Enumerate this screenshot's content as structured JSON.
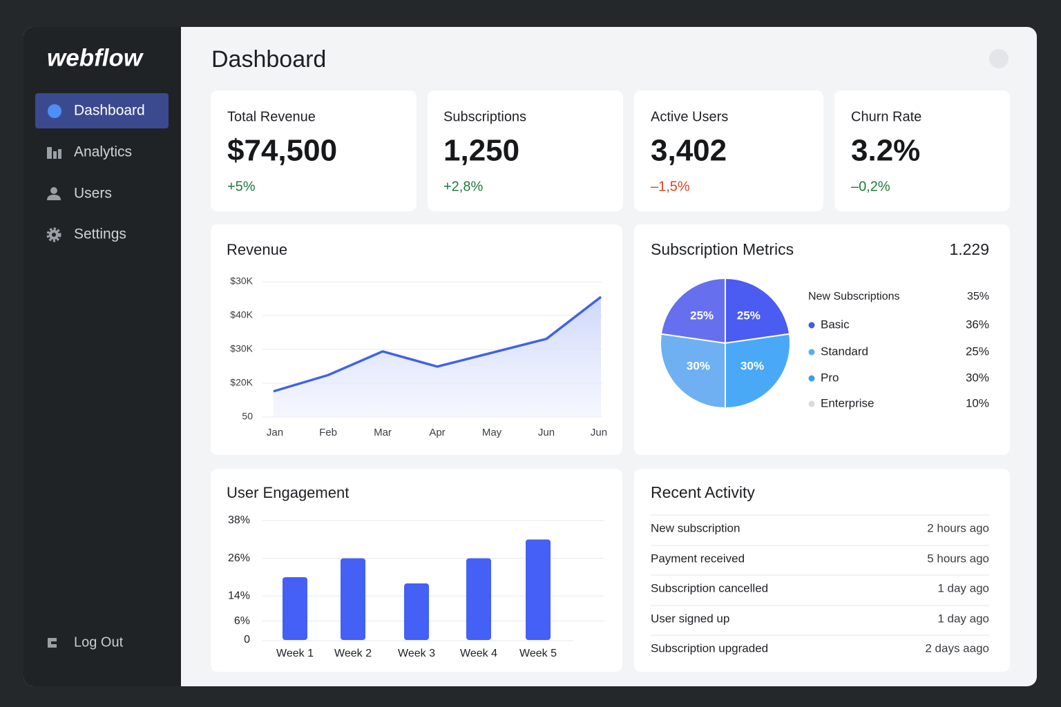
{
  "sidebar": {
    "logo": "webflow",
    "nav": [
      "Dashboard",
      "Analytics",
      "Users",
      "Settings"
    ],
    "active": 0,
    "logout": "Log Out"
  },
  "header": {
    "title": "Dashboard"
  },
  "kpis": [
    {
      "label": "Total Revenue",
      "value": "$74,500",
      "change": "+5%",
      "change_color": "#1e7a3c"
    },
    {
      "label": "Subscriptions",
      "value": "1,250",
      "change": "+2,8%",
      "change_color": "#1e7a3c"
    },
    {
      "label": "Active Users",
      "value": "3,402",
      "change": "–1,5%",
      "change_color": "#e0401f"
    },
    {
      "label": "Churn Rate",
      "value": "3.2%",
      "change": "–0,2%",
      "change_color": "#1e7a3c"
    }
  ],
  "revenue_chart": {
    "type": "line",
    "title": "Revenue",
    "categories": [
      "Jan",
      "Feb",
      "Mar",
      "Apr",
      "May",
      "Jun",
      "Jun"
    ],
    "values": [
      0.76,
      1.24,
      1.94,
      1.49,
      1.9,
      2.31,
      3.55
    ],
    "y_labels": [
      "50",
      "$20K",
      "$30K",
      "$40K",
      "$30K"
    ],
    "ylim": [
      0,
      4
    ],
    "color": "#3f63e6",
    "grid": true
  },
  "subscription_metrics": {
    "type": "pie",
    "title": "Subscription Metrics",
    "total": 1.229,
    "values": [
      25,
      30,
      30,
      25
    ],
    "value_labels": [
      "25%",
      "30%",
      "30%",
      "25%"
    ],
    "colors": [
      "#4a5cf2",
      "#4aa9f7",
      "#6eb0f2",
      "#6670ee"
    ],
    "legend": {
      "title": "New Subscriptions",
      "title_value": "35%",
      "items": [
        {
          "name": "Basic",
          "value": "36%",
          "color": "#3f5ae8"
        },
        {
          "name": "Standard",
          "value": "25%",
          "color": "#5aaef0"
        },
        {
          "name": "Pro",
          "value": "30%",
          "color": "#3d9df2"
        },
        {
          "name": "Enterprise",
          "value": "10%",
          "color": "#d8dadd"
        }
      ]
    }
  },
  "engagement_chart": {
    "type": "bar",
    "title": "User Engagement",
    "categories": [
      "Week 1",
      "Week 2",
      "Week 3",
      "Week 4",
      "Week 5"
    ],
    "values": [
      20,
      26,
      18,
      26,
      32
    ],
    "ylim": [
      0,
      38
    ],
    "yticks": [
      0,
      {
        "value": 6,
        "label": "6%"
      },
      {
        "value": 14,
        "label": "14%"
      },
      {
        "value": 26,
        "label": "26%"
      },
      {
        "value": 38,
        "label": "38%"
      }
    ],
    "color": "#4560f5",
    "grid": true
  },
  "recent_activity": {
    "title": "Recent Activity",
    "rows": [
      [
        "New subscription",
        "2 hours ago"
      ],
      [
        "Payment received",
        "5 hours ago"
      ],
      [
        "Subscription cancelled",
        "1 day ago"
      ],
      [
        "User signed up",
        "1 day ago"
      ],
      [
        "Subscription upgraded",
        "2 days aago"
      ]
    ]
  }
}
